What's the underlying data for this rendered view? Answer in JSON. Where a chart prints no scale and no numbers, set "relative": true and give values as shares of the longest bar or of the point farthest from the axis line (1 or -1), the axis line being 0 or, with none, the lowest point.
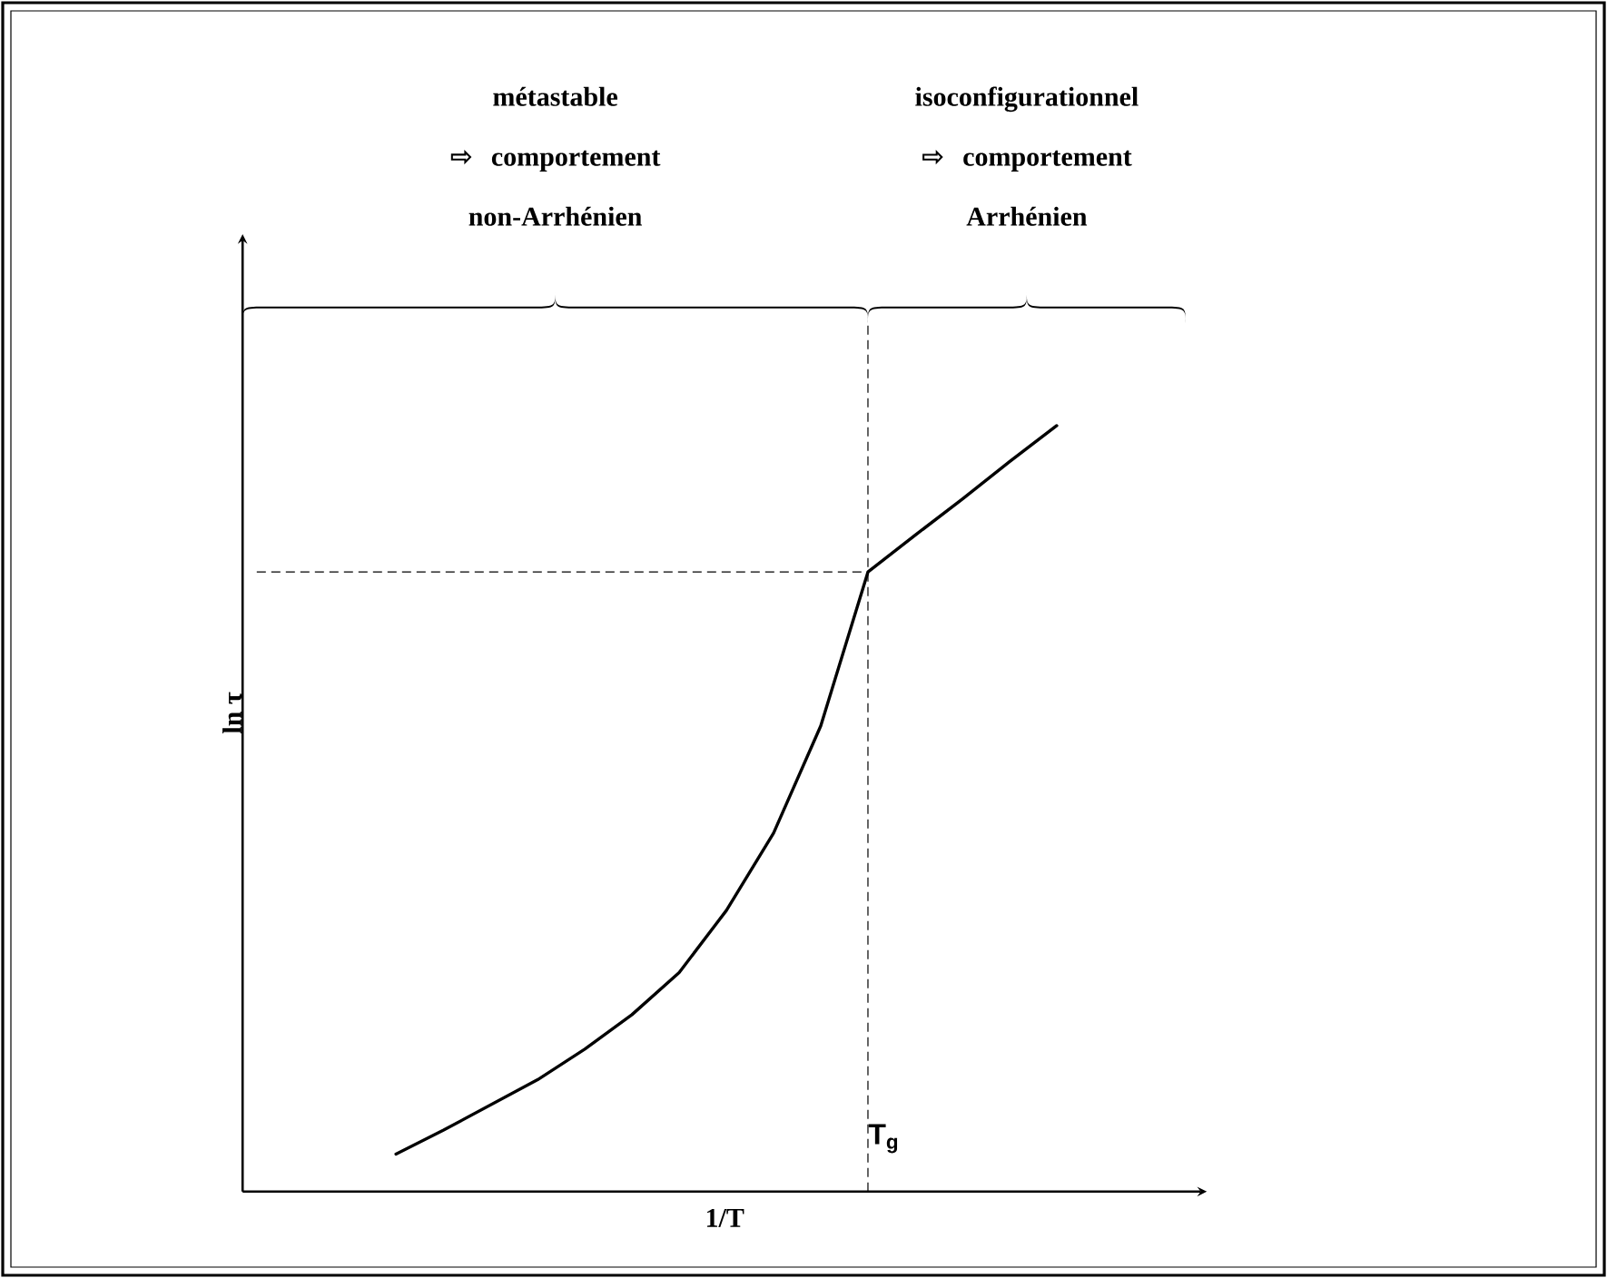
{
  "chart_data": {
    "type": "line",
    "relative": true,
    "xlabel": "1/T",
    "ylabel": "ln τ",
    "categories": [
      null,
      null,
      null,
      null,
      null,
      null,
      null,
      null,
      null,
      null,
      null,
      null,
      null,
      null,
      null
    ],
    "values": [
      0.049,
      0.08,
      0.113,
      0.146,
      0.186,
      0.231,
      0.286,
      0.367,
      0.468,
      0.608,
      0.809,
      0.857,
      0.904,
      0.953,
      1
    ],
    "color": "#000000",
    "ref_lines": [
      {
        "axis": "y",
        "value": 0.809,
        "line_style": "dashed"
      }
    ],
    "annotations": [
      "métastable ⇨ comportement non-Arrhénien",
      "isoconfigurationnel ⇨ comportement Arrhénien",
      "T$_{g}$"
    ]
  }
}
